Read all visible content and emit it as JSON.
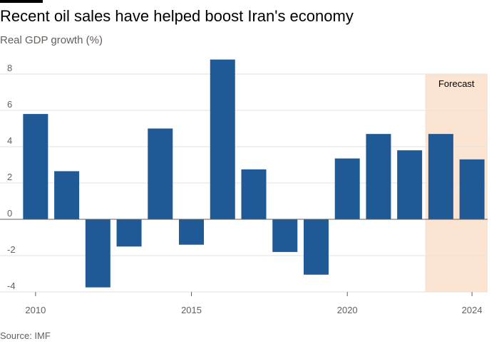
{
  "title": "Recent oil sales have helped boost Iran's economy",
  "subtitle": "Real GDP growth (%)",
  "source": "Source: IMF",
  "colors": {
    "bar": "#1f5a96",
    "forecast_band": "#fbe4d2",
    "grid": "#e6e2de",
    "zero_line": "#66605c"
  },
  "chart_data": {
    "type": "bar",
    "title": "",
    "xlabel": "",
    "ylabel": "",
    "ylim": [
      -4,
      8
    ],
    "y_ticks": [
      -4,
      -2,
      0,
      2,
      4,
      6,
      8
    ],
    "x_tick_labels": [
      "2010",
      "2015",
      "2020",
      "2024"
    ],
    "x_ticks": [
      2010,
      2015,
      2020,
      2024
    ],
    "categories": [
      2010,
      2011,
      2012,
      2013,
      2014,
      2015,
      2016,
      2017,
      2018,
      2019,
      2020,
      2021,
      2022,
      2023,
      2024
    ],
    "values": [
      5.8,
      2.65,
      -3.75,
      -1.5,
      5.0,
      -1.4,
      8.8,
      2.75,
      -1.8,
      -3.05,
      3.35,
      4.7,
      3.8,
      4.7,
      3.3
    ],
    "forecast": {
      "label": "Forecast",
      "from": 2023,
      "to": 2024
    }
  }
}
